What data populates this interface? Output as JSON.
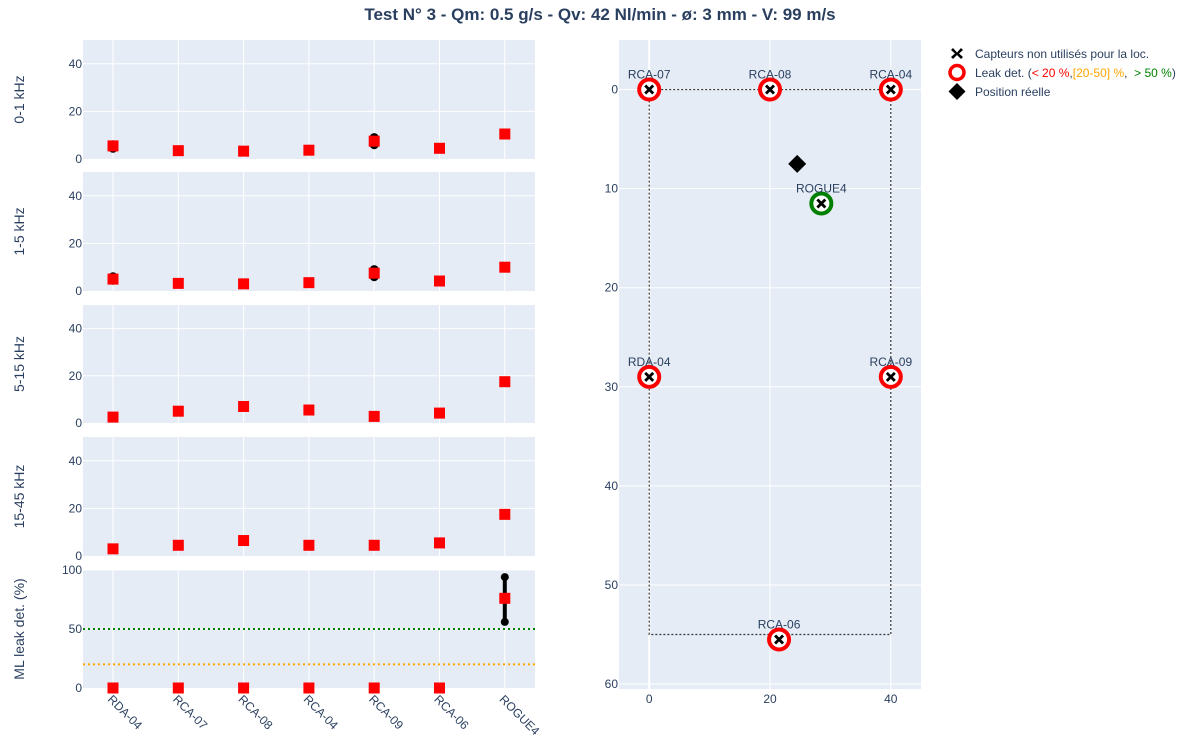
{
  "chart_data": {
    "title": "Test N° 3 - Qm: 0.5 g/s - Qv: 42 Nl/min - ø: 3 mm - V: 99 m/s",
    "left_panels": {
      "type": "scatter",
      "categories": [
        "RDA-04",
        "RCA-07",
        "RCA-08",
        "RCA-04",
        "RCA-09",
        "RCA-06",
        "ROGUE4"
      ],
      "panels": [
        {
          "ylabel": "0-1 kHz",
          "ylim": [
            0,
            50
          ],
          "yticks": [
            0,
            20,
            40
          ],
          "series": [
            {
              "marker": "circle",
              "color": "#000000",
              "values": [
                6,
                null,
                null,
                null,
                9,
                null,
                null
              ]
            },
            {
              "marker": "circle",
              "color": "#000000",
              "values": [
                4.5,
                null,
                null,
                null,
                6,
                null,
                null
              ]
            },
            {
              "marker": "square",
              "color": "#ff0000",
              "values": [
                5.5,
                3.5,
                3.3,
                3.7,
                7.5,
                4.5,
                10.5
              ]
            }
          ]
        },
        {
          "ylabel": "1-5 kHz",
          "ylim": [
            0,
            50
          ],
          "yticks": [
            0,
            20,
            40
          ],
          "series": [
            {
              "marker": "circle",
              "color": "#000000",
              "values": [
                6,
                null,
                null,
                null,
                9,
                null,
                null
              ]
            },
            {
              "marker": "circle",
              "color": "#000000",
              "values": [
                4.5,
                null,
                null,
                null,
                6,
                null,
                null
              ]
            },
            {
              "marker": "square",
              "color": "#ff0000",
              "values": [
                5,
                3.2,
                3,
                3.5,
                7.5,
                4.2,
                10
              ]
            }
          ]
        },
        {
          "ylabel": "5-15 kHz",
          "ylim": [
            0,
            50
          ],
          "yticks": [
            0,
            20,
            40
          ],
          "series": [
            {
              "marker": "square",
              "color": "#ff0000",
              "values": [
                2.5,
                5,
                7,
                5.5,
                2.8,
                4.2,
                17.5
              ]
            }
          ]
        },
        {
          "ylabel": "15-45 kHz",
          "ylim": [
            0,
            50
          ],
          "yticks": [
            0,
            20,
            40
          ],
          "series": [
            {
              "marker": "square",
              "color": "#ff0000",
              "values": [
                3,
                4.5,
                6.5,
                4.5,
                4.5,
                5.5,
                17.5
              ]
            }
          ]
        },
        {
          "ylabel": "ML leak det. (%)",
          "ylim": [
            0,
            100
          ],
          "yticks": [
            0,
            50,
            100
          ],
          "hlines": [
            {
              "y": 50,
              "color": "#008000"
            },
            {
              "y": 20,
              "color": "#ffa500"
            }
          ],
          "errorbar": {
            "category": "ROGUE4",
            "low": 56,
            "high": 94
          },
          "series": [
            {
              "marker": "square",
              "color": "#ff0000",
              "values": [
                0,
                0,
                0,
                0,
                0,
                0,
                76
              ]
            }
          ]
        }
      ]
    },
    "map": {
      "type": "scatter",
      "xlim": [
        -5,
        45
      ],
      "ylim": [
        60.5,
        -5
      ],
      "xticks": [
        0,
        20,
        40
      ],
      "yticks": [
        0,
        10,
        20,
        30,
        40,
        50,
        60
      ],
      "boundary": [
        [
          0,
          0
        ],
        [
          40,
          0
        ],
        [
          40,
          55
        ],
        [
          0,
          55
        ],
        [
          0,
          0
        ]
      ],
      "sensors": [
        {
          "label": "RCA-07",
          "x": 0,
          "y": 0,
          "ring": "#ff0000"
        },
        {
          "label": "RCA-08",
          "x": 20,
          "y": 0,
          "ring": "#ff0000"
        },
        {
          "label": "RCA-04",
          "x": 40,
          "y": 0,
          "ring": "#ff0000"
        },
        {
          "label": "RDA-04",
          "x": 0,
          "y": 29,
          "ring": "#ff0000"
        },
        {
          "label": "RCA-09",
          "x": 40,
          "y": 29,
          "ring": "#ff0000"
        },
        {
          "label": "RCA-06",
          "x": 21.5,
          "y": 55.5,
          "ring": "#ff0000"
        },
        {
          "label": "ROGUE4",
          "x": 28.5,
          "y": 11.5,
          "ring": "#008000"
        }
      ],
      "real_position": {
        "x": 24.5,
        "y": 7.5
      }
    },
    "legend": {
      "unused_label": "Capteurs non utilisés pour la loc.",
      "leak_prefix": "Leak det. (",
      "leak_low": "< 20 %",
      "leak_sep1": ", ",
      "leak_mid": "[20-50] %",
      "leak_sep2": ",  ",
      "leak_high": "> 50 %",
      "leak_suffix": ")",
      "real_label": "Position réelle",
      "colors": {
        "low": "#ff0000",
        "mid": "#ffa500",
        "high": "#008000"
      }
    }
  }
}
